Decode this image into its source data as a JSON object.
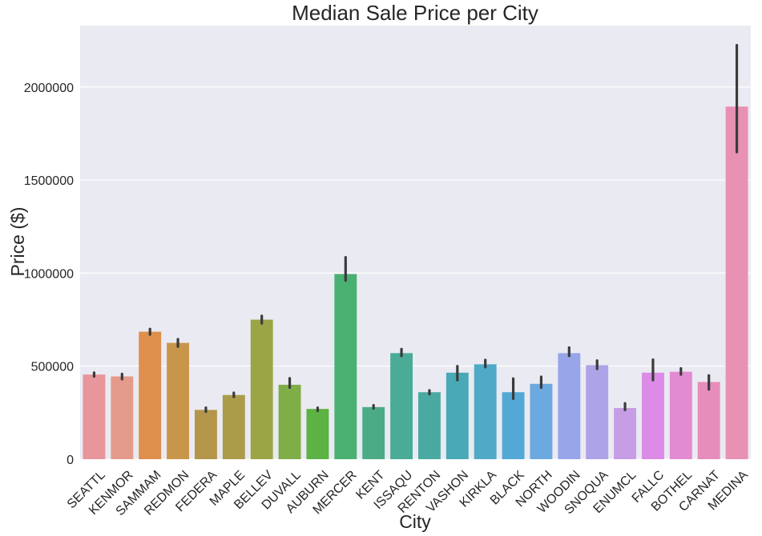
{
  "chart_data": {
    "type": "bar",
    "title": "Median Sale Price per City",
    "xlabel": "City",
    "ylabel": "Price ($)",
    "ylim": [
      0,
      2330000
    ],
    "yticks": [
      0,
      500000,
      1000000,
      1500000,
      2000000
    ],
    "ytick_labels": [
      "0",
      "500000",
      "1000000",
      "1500000",
      "2000000"
    ],
    "grid": true,
    "background": "#eaeaf2",
    "error_bar_color": "#3b3b3b",
    "categories": [
      "SEATTL",
      "KENMOR",
      "SAMMAM",
      "REDMON",
      "FEDERA",
      "MAPLE",
      "BELLEV",
      "DUVALL",
      "AUBURN",
      "MERCER",
      "KENT",
      "ISSAQU",
      "RENTON",
      "VASHON",
      "KIRKLA",
      "BLACK",
      "NORTH",
      "WOODIN",
      "SNOQUA",
      "ENUMCL",
      "FALLC",
      "BOTHEL",
      "CARNAT",
      "MEDINA"
    ],
    "values": [
      455000,
      445000,
      685000,
      625000,
      265000,
      345000,
      750000,
      400000,
      270000,
      995000,
      280000,
      570000,
      360000,
      465000,
      510000,
      360000,
      405000,
      570000,
      505000,
      275000,
      465000,
      470000,
      415000,
      1895000
    ],
    "error_low": [
      445000,
      430000,
      670000,
      605000,
      255000,
      335000,
      730000,
      385000,
      260000,
      960000,
      273000,
      555000,
      350000,
      425000,
      495000,
      325000,
      385000,
      555000,
      485000,
      265000,
      425000,
      455000,
      375000,
      1650000
    ],
    "error_high": [
      465000,
      458000,
      700000,
      645000,
      277000,
      357000,
      770000,
      435000,
      277000,
      1085000,
      290000,
      592000,
      370000,
      500000,
      533000,
      433000,
      443000,
      600000,
      530000,
      300000,
      535000,
      488000,
      450000,
      2225000
    ],
    "colors": [
      "#e8959c",
      "#e49b8c",
      "#de8f4c",
      "#c8964a",
      "#b4964a",
      "#ab9c4a",
      "#9ba545",
      "#7fad48",
      "#5cb243",
      "#4ab172",
      "#4bab86",
      "#4aab96",
      "#4aaaa2",
      "#4aa9b6",
      "#4eaac6",
      "#54a8d6",
      "#6ba9e0",
      "#96a6e8",
      "#ada3e8",
      "#c79de6",
      "#dc8ce6",
      "#e28ad2",
      "#e68dbb",
      "#e891b2"
    ]
  }
}
